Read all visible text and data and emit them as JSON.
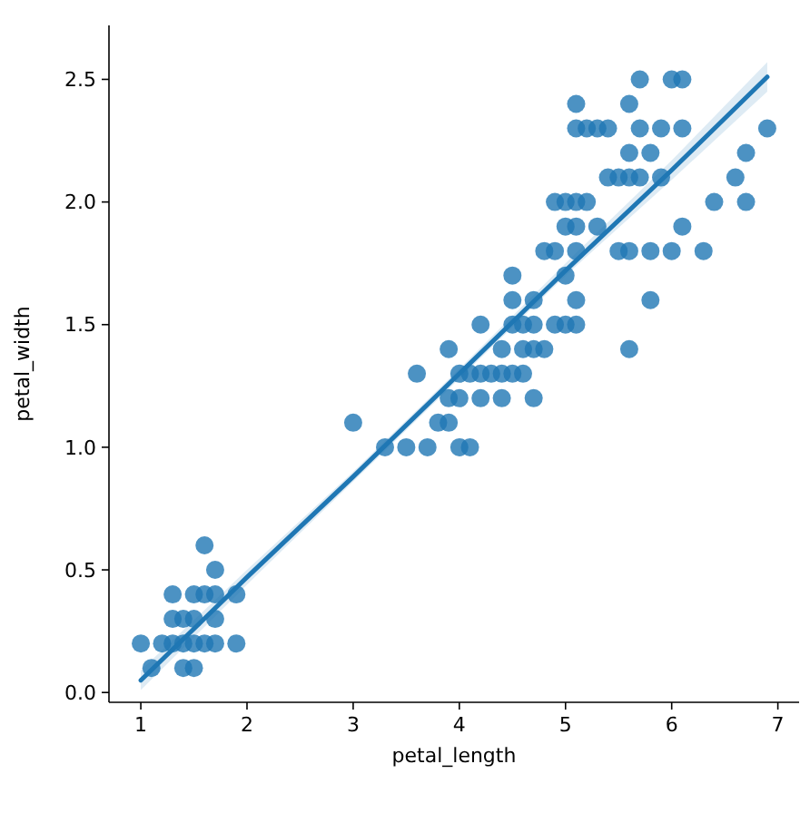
{
  "chart_data": {
    "type": "scatter",
    "xlabel": "petal_length",
    "ylabel": "petal_width",
    "xlim": [
      0.7,
      7.2
    ],
    "ylim": [
      -0.04,
      2.72
    ],
    "xticks": [
      1,
      2,
      3,
      4,
      5,
      6,
      7
    ],
    "yticks": [
      {
        "value": 0,
        "label": "0.0"
      },
      {
        "value": 0.5,
        "label": "0.5"
      },
      {
        "value": 1,
        "label": "1.0"
      },
      {
        "value": 1.5,
        "label": "1.5"
      },
      {
        "value": 2,
        "label": "2.0"
      },
      {
        "value": 2.5,
        "label": "2.5"
      }
    ],
    "series": [
      {
        "marker": "circle",
        "color": "#1f77b4",
        "x": [
          1.0,
          1.1,
          1.2,
          1.3,
          1.3,
          1.3,
          1.4,
          1.4,
          1.4,
          1.5,
          1.5,
          1.5,
          1.5,
          1.6,
          1.6,
          1.6,
          1.7,
          1.7,
          1.7,
          1.7,
          1.9,
          1.9,
          4.7,
          4.5,
          4.9,
          4.0,
          4.6,
          4.5,
          4.7,
          3.3,
          4.6,
          3.9,
          3.5,
          4.2,
          4.0,
          3.6,
          4.4,
          4.1,
          3.9,
          4.8,
          4.7,
          4.3,
          4.8,
          5.0,
          3.8,
          3.7,
          3.9,
          5.1,
          4.5,
          4.7,
          4.4,
          4.1,
          4.4,
          4.6,
          4.0,
          4.2,
          4.2,
          3.0,
          6.0,
          5.1,
          5.9,
          5.6,
          5.8,
          6.6,
          4.5,
          6.3,
          5.8,
          6.1,
          5.1,
          5.3,
          5.5,
          5.0,
          5.1,
          5.3,
          5.5,
          6.7,
          6.9,
          5.0,
          5.7,
          4.9,
          6.7,
          4.9,
          5.7,
          6.0,
          5.6,
          5.8,
          6.1,
          6.4,
          5.6,
          5.1,
          5.6,
          6.1,
          5.6,
          5.4,
          5.1,
          5.9,
          5.7,
          5.2,
          5.0,
          5.2,
          5.4,
          5.1
        ],
        "values": [
          0.2,
          0.1,
          0.2,
          0.2,
          0.3,
          0.4,
          0.1,
          0.2,
          0.3,
          0.1,
          0.2,
          0.3,
          0.4,
          0.2,
          0.4,
          0.6,
          0.2,
          0.3,
          0.4,
          0.5,
          0.2,
          0.4,
          1.4,
          1.5,
          1.5,
          1.3,
          1.5,
          1.3,
          1.6,
          1.0,
          1.3,
          1.4,
          1.0,
          1.5,
          1.0,
          1.3,
          1.4,
          1.0,
          1.1,
          1.8,
          1.2,
          1.3,
          1.4,
          1.7,
          1.1,
          1.0,
          1.2,
          1.6,
          1.6,
          1.5,
          1.3,
          1.3,
          1.2,
          1.4,
          1.2,
          1.3,
          1.2,
          1.1,
          2.5,
          1.9,
          2.1,
          1.8,
          2.2,
          2.1,
          1.7,
          1.8,
          1.8,
          2.5,
          2.0,
          1.9,
          2.1,
          2.0,
          2.4,
          2.3,
          1.8,
          2.2,
          2.3,
          1.5,
          2.3,
          2.0,
          2.0,
          1.8,
          2.1,
          1.8,
          2.1,
          1.6,
          1.9,
          2.0,
          2.2,
          1.5,
          1.4,
          2.3,
          2.4,
          2.1,
          2.3,
          2.3,
          2.5,
          2.3,
          1.9,
          2.0,
          2.3,
          1.8
        ]
      },
      {
        "type": "line",
        "marker": "none",
        "color": "#1f77b4",
        "x": [
          1.0,
          2.0,
          3.0,
          4.0,
          5.0,
          6.0,
          6.9
        ],
        "values": [
          0.05,
          0.47,
          0.88,
          1.3,
          1.72,
          2.13,
          2.51
        ],
        "lower": [
          0.01,
          0.44,
          0.86,
          1.28,
          1.7,
          2.09,
          2.45
        ],
        "upper": [
          0.09,
          0.5,
          0.9,
          1.32,
          1.75,
          2.17,
          2.57
        ]
      }
    ]
  }
}
